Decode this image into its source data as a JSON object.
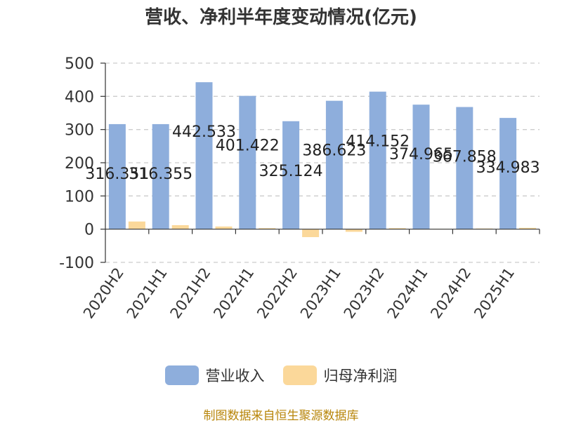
{
  "chart_data": {
    "type": "bar",
    "title": "营收、净利半年度变动情况(亿元)",
    "categories": [
      "2020H2",
      "2021H1",
      "2021H2",
      "2022H1",
      "2022H2",
      "2023H1",
      "2023H2",
      "2024H1",
      "2024H2",
      "2025H1"
    ],
    "series": [
      {
        "name": "营业收入",
        "color": "#8eaedc",
        "values": [
          316.351,
          316.355,
          442.533,
          401.422,
          325.124,
          386.623,
          414.152,
          374.965,
          367.858,
          334.983
        ],
        "labels": [
          "316.351",
          "316.355",
          "442.533",
          "401.422",
          "325.124",
          "386.623",
          "414.152",
          "374.965",
          "367.858",
          "334.983"
        ]
      },
      {
        "name": "归母净利润",
        "color": "#fbd89a",
        "values": [
          23,
          12,
          8,
          3,
          -24,
          -8,
          3,
          1,
          2,
          4
        ]
      }
    ],
    "ylim": [
      -100,
      500
    ],
    "yticks": [
      "500",
      "400",
      "300",
      "200",
      "100",
      "0",
      "-100"
    ],
    "grid": true,
    "legend_position": "bottom"
  },
  "source": "制图数据来自恒生聚源数据库"
}
